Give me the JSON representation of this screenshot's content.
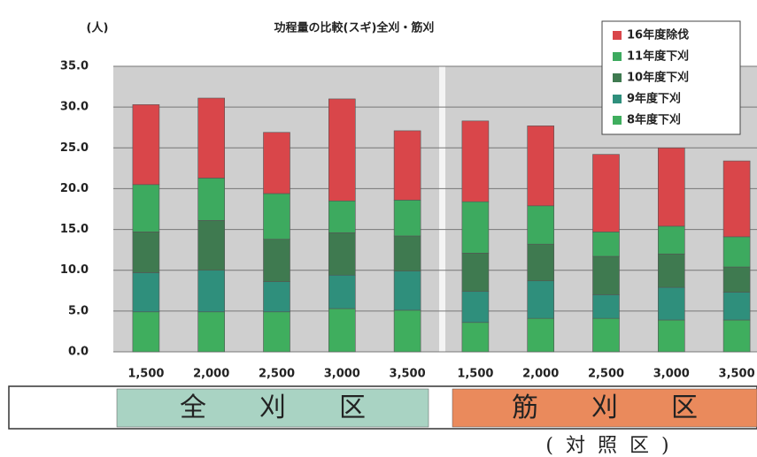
{
  "chart_data": {
    "type": "stacked_bar",
    "title": "功程量の比較(スギ)全刈・筋刈",
    "y_unit": "(人)",
    "categories": [
      "1,500",
      "2,000",
      "2,500",
      "3,000",
      "3,500",
      "1,500",
      "2,000",
      "2,500",
      "3,000",
      "3,500"
    ],
    "series": [
      {
        "name": "8年度下刈",
        "color": "#3fae5e",
        "values": [
          4.9,
          4.9,
          4.9,
          5.3,
          5.1,
          3.6,
          4.1,
          4.1,
          3.9,
          3.9
        ]
      },
      {
        "name": "9年度下刈",
        "color": "#2f8f7c",
        "values": [
          4.8,
          5.1,
          3.7,
          4.1,
          4.8,
          3.8,
          4.6,
          2.9,
          4.0,
          3.4
        ]
      },
      {
        "name": "10年度下刈",
        "color": "#3f7a50",
        "values": [
          5.0,
          6.1,
          5.2,
          5.2,
          4.3,
          4.7,
          4.5,
          4.7,
          4.1,
          3.1
        ]
      },
      {
        "name": "11年度下刈",
        "color": "#3daa5f",
        "values": [
          5.8,
          5.2,
          5.6,
          3.9,
          4.4,
          6.3,
          4.7,
          3.0,
          3.4,
          3.7
        ]
      },
      {
        "name": "16年度除伐",
        "color": "#d9464a",
        "values": [
          9.8,
          9.8,
          7.5,
          12.5,
          8.5,
          9.9,
          9.8,
          9.5,
          9.6,
          9.3
        ]
      }
    ],
    "ylim": [
      0,
      35
    ],
    "yticks": [
      {
        "value": 0,
        "label": "0.0"
      },
      {
        "value": 5,
        "label": "5.0"
      },
      {
        "value": 10,
        "label": "10.0"
      },
      {
        "value": 15,
        "label": "15.0"
      },
      {
        "value": 20,
        "label": "20.0"
      },
      {
        "value": 25,
        "label": "25.0"
      },
      {
        "value": 30,
        "label": "30.0"
      },
      {
        "value": 35,
        "label": "35.0"
      }
    ],
    "grid": true,
    "legend": "top-right",
    "groups": [
      {
        "label": "全刈区",
        "color": "#a9d3c3"
      },
      {
        "label": "筋刈区",
        "color": "#ea8a5c",
        "note": "(対照区)"
      }
    ]
  }
}
